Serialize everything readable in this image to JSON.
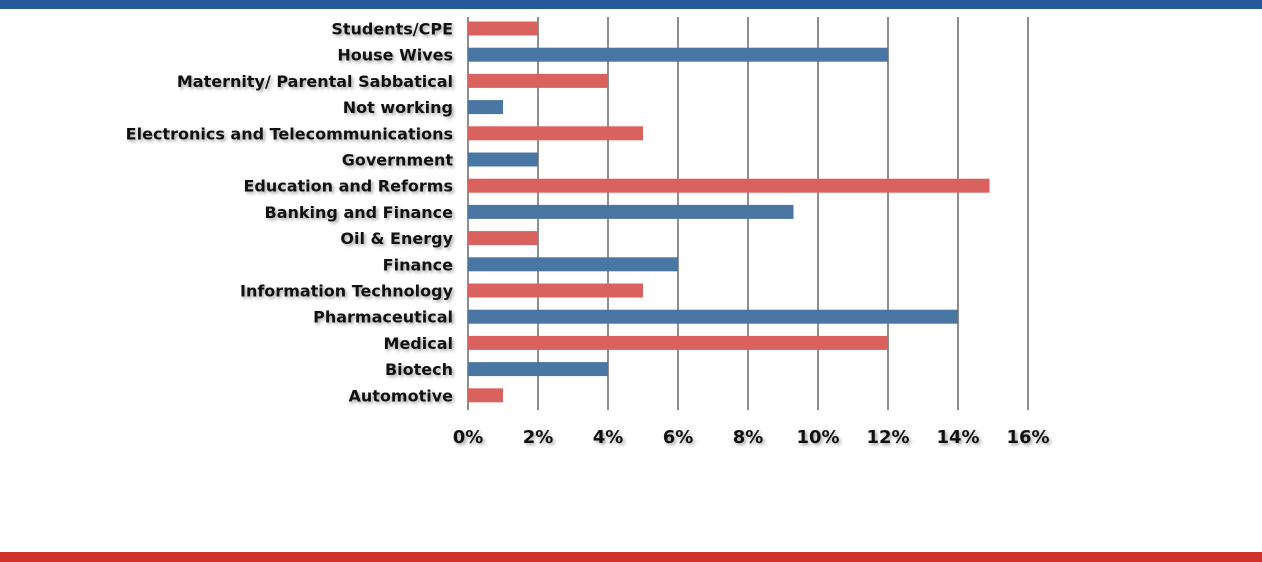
{
  "chart_data": {
    "type": "bar",
    "orientation": "horizontal",
    "categories": [
      "Students/CPE",
      "House Wives",
      "Maternity/ Parental Sabbatical",
      "Not working",
      "Electronics and Telecommunications",
      "Government",
      "Education and Reforms",
      "Banking and Finance",
      "Oil & Energy",
      "Finance",
      "Information Technology",
      "Pharmaceutical",
      "Medical",
      "Biotech",
      "Automotive"
    ],
    "values": [
      2,
      12,
      4,
      1,
      5,
      2,
      14.9,
      9.3,
      2,
      6,
      5,
      14,
      12,
      4,
      1
    ],
    "bar_colors": [
      "#d9625f",
      "#4a76a3"
    ],
    "xlim": [
      0,
      16
    ],
    "xticks": [
      "0%",
      "2%",
      "4%",
      "6%",
      "8%",
      "10%",
      "12%",
      "14%",
      "16%"
    ],
    "xtick_values": [
      0,
      2,
      4,
      6,
      8,
      10,
      12,
      14,
      16
    ],
    "grid": "vertical",
    "legend": "none",
    "title": "",
    "xlabel": "",
    "ylabel": ""
  },
  "theme": {
    "top_bar_color": "#245a9c",
    "bottom_bar_color": "#d0302a"
  }
}
